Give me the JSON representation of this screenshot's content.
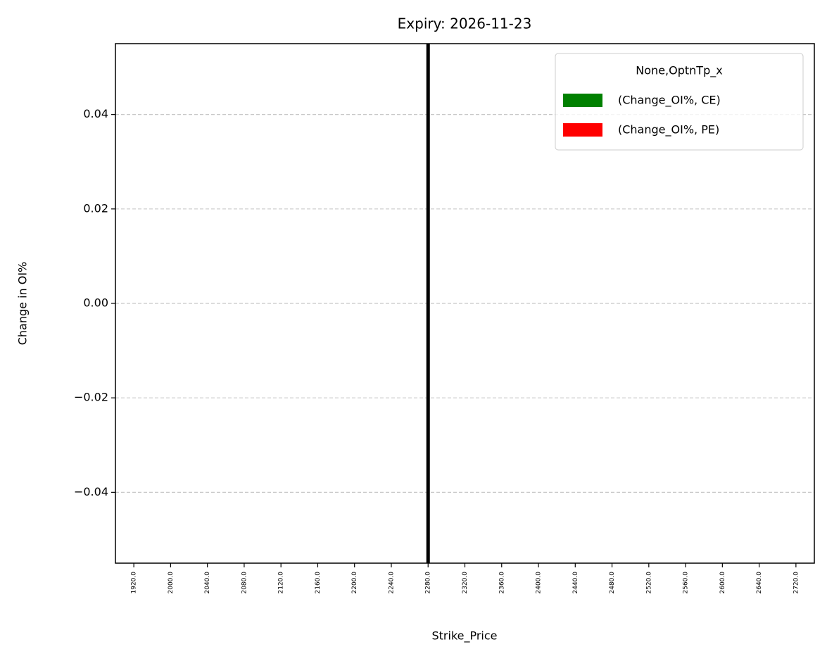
{
  "chart_data": {
    "type": "bar",
    "title": "Expiry: 2026-11-23",
    "x_label": "Strike_Price",
    "y_label": "Change in OI%",
    "categories": [
      "1920.0",
      "2000.0",
      "2040.0",
      "2080.0",
      "2120.0",
      "2160.0",
      "2200.0",
      "2240.0",
      "2280.0",
      "2320.0",
      "2360.0",
      "2400.0",
      "2440.0",
      "2480.0",
      "2520.0",
      "2560.0",
      "2600.0",
      "2640.0",
      "2720.0"
    ],
    "series": [
      {
        "name": "(Change_OI%, CE)",
        "color": "#008000",
        "values": [
          0,
          0,
          0,
          0,
          0,
          0,
          0,
          0,
          0,
          0,
          0,
          0,
          0,
          0,
          0,
          0,
          0,
          0,
          0
        ]
      },
      {
        "name": "(Change_OI%, PE)",
        "color": "#ff0000",
        "values": [
          0,
          0,
          0,
          0,
          0,
          0,
          0,
          0,
          0,
          0,
          0,
          0,
          0,
          0,
          0,
          0,
          0,
          0,
          0
        ]
      }
    ],
    "legend_title": "None,OptnTp_x",
    "legend": "upper right",
    "ylim": [
      -0.055,
      0.055
    ],
    "yticks": [
      {
        "value": -0.04,
        "label": "−0.04"
      },
      {
        "value": -0.02,
        "label": "−0.02"
      },
      {
        "value": 0,
        "label": "0.00"
      },
      {
        "value": 0.02,
        "label": "0.02"
      },
      {
        "value": 0.04,
        "label": "0.04"
      }
    ],
    "grid": true,
    "vline": {
      "category": "2280.0",
      "color": "#000000"
    }
  }
}
